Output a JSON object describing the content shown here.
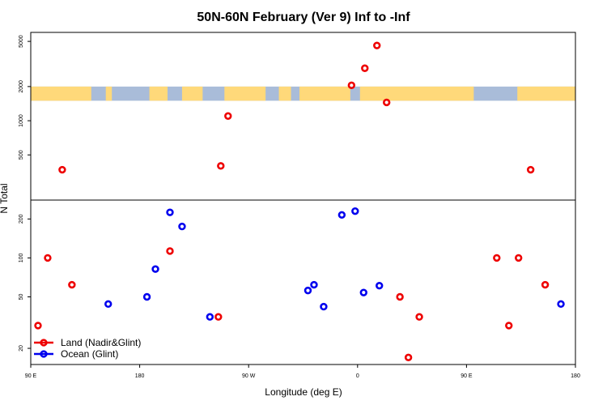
{
  "chart_data": {
    "type": "scatter",
    "title": "50N-60N February (Ver 9)   Inf to -Inf",
    "xlabel": "Longitude (deg E)",
    "ylabel": "N Total",
    "x_ticks": [
      {
        "value": 90,
        "label": "90 E"
      },
      {
        "value": 180,
        "label": "180"
      },
      {
        "value": 270,
        "label": "90 W"
      },
      {
        "value": 360,
        "label": "0"
      },
      {
        "value": 450,
        "label": "90 E"
      },
      {
        "value": 540,
        "label": "180"
      }
    ],
    "xlim": [
      90,
      540
    ],
    "upper_panel": {
      "scale": "log",
      "ylim": [
        200,
        6000
      ],
      "y_ticks": [
        500,
        1000,
        2000,
        5000
      ],
      "map_band": {
        "y_range": [
          1500,
          2000
        ],
        "ocean_color": "#a9bcd9",
        "land_color": "#ffd97a"
      }
    },
    "lower_panel": {
      "scale": "log",
      "ylim": [
        15,
        280
      ],
      "y_ticks": [
        20,
        50,
        100,
        200
      ]
    },
    "series": [
      {
        "name": "Land (Nadir&Glint)",
        "color": "#ee0000",
        "points": [
          {
            "x": 96,
            "y": 30
          },
          {
            "x": 104,
            "y": 100
          },
          {
            "x": 116,
            "y": 370
          },
          {
            "x": 124,
            "y": 62
          },
          {
            "x": 205,
            "y": 113
          },
          {
            "x": 245,
            "y": 35
          },
          {
            "x": 247,
            "y": 400
          },
          {
            "x": 253,
            "y": 1100
          },
          {
            "x": 355,
            "y": 2050
          },
          {
            "x": 366,
            "y": 2900
          },
          {
            "x": 376,
            "y": 4600
          },
          {
            "x": 384,
            "y": 1450
          },
          {
            "x": 395,
            "y": 50
          },
          {
            "x": 402,
            "y": 17
          },
          {
            "x": 411,
            "y": 35
          },
          {
            "x": 475,
            "y": 100
          },
          {
            "x": 485,
            "y": 30
          },
          {
            "x": 493,
            "y": 100
          },
          {
            "x": 503,
            "y": 370
          },
          {
            "x": 515,
            "y": 62
          }
        ]
      },
      {
        "name": "Ocean (Glint)",
        "color": "#0000ee",
        "points": [
          {
            "x": 154,
            "y": 44
          },
          {
            "x": 186,
            "y": 50
          },
          {
            "x": 193,
            "y": 82
          },
          {
            "x": 205,
            "y": 225
          },
          {
            "x": 215,
            "y": 175
          },
          {
            "x": 238,
            "y": 35
          },
          {
            "x": 319,
            "y": 56
          },
          {
            "x": 324,
            "y": 62
          },
          {
            "x": 332,
            "y": 42
          },
          {
            "x": 347,
            "y": 215
          },
          {
            "x": 358,
            "y": 230
          },
          {
            "x": 365,
            "y": 54
          },
          {
            "x": 378,
            "y": 61
          },
          {
            "x": 528,
            "y": 44
          }
        ]
      }
    ],
    "legend": {
      "position": "bottom-left"
    }
  }
}
